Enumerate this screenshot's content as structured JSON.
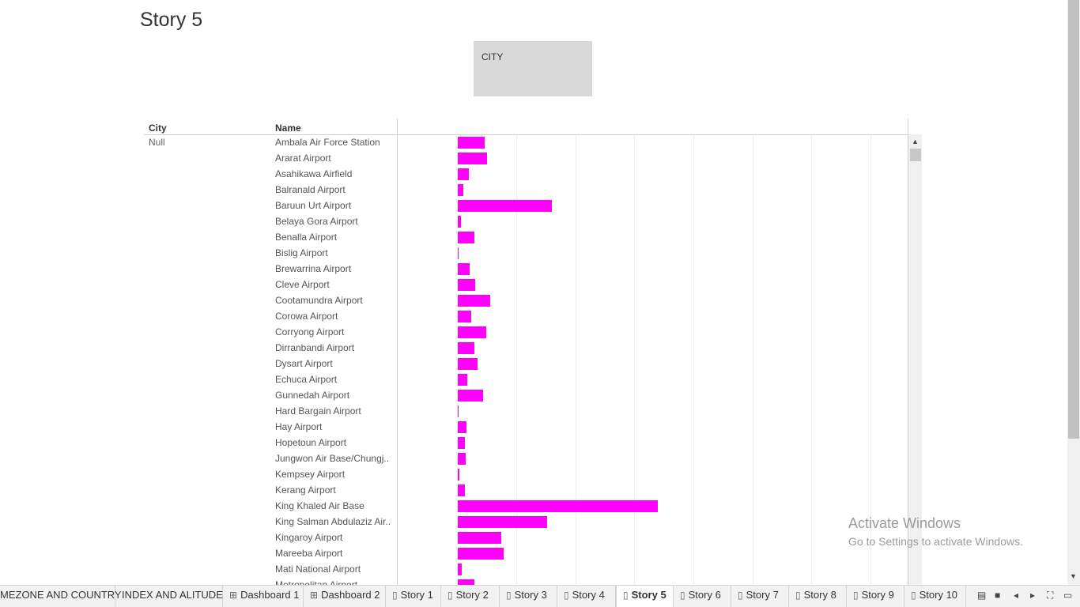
{
  "story_title": "Story 5",
  "filter": {
    "label": "CITY"
  },
  "table": {
    "city_header": "City",
    "name_header": "Name",
    "city_value": "Null",
    "rows": [
      {
        "name": "Ambala Air Force Station",
        "value": 34
      },
      {
        "name": "Ararat Airport",
        "value": 37
      },
      {
        "name": "Asahikawa Airfield",
        "value": 14
      },
      {
        "name": "Balranald Airport",
        "value": 7
      },
      {
        "name": "Baruun Urt Airport",
        "value": 119
      },
      {
        "name": "Belaya Gora Airport",
        "value": 4
      },
      {
        "name": "Benalla Airport",
        "value": 21
      },
      {
        "name": "Bislig Airport",
        "value": 1
      },
      {
        "name": "Brewarrina Airport",
        "value": 15
      },
      {
        "name": "Cleve Airport",
        "value": 22
      },
      {
        "name": "Cootamundra Airport",
        "value": 41
      },
      {
        "name": "Corowa Airport",
        "value": 17
      },
      {
        "name": "Corryong Airport",
        "value": 36
      },
      {
        "name": "Dirranbandi Airport",
        "value": 21
      },
      {
        "name": "Dysart Airport",
        "value": 25
      },
      {
        "name": "Echuca Airport",
        "value": 12
      },
      {
        "name": "Gunnedah Airport",
        "value": 32
      },
      {
        "name": "Hard Bargain Airport",
        "value": 1
      },
      {
        "name": "Hay Airport",
        "value": 11
      },
      {
        "name": "Hopetoun Airport",
        "value": 9
      },
      {
        "name": "Jungwon Air Base/Chungj..",
        "value": 10
      },
      {
        "name": "Kempsey Airport",
        "value": 2
      },
      {
        "name": "Kerang Airport",
        "value": 9
      },
      {
        "name": "King Khaled Air Base",
        "value": 253
      },
      {
        "name": "King Salman Abdulaziz Air..",
        "value": 113
      },
      {
        "name": "Kingaroy Airport",
        "value": 55
      },
      {
        "name": "Mareeba Airport",
        "value": 58
      },
      {
        "name": "Mati National Airport",
        "value": 5
      },
      {
        "name": "Metropolitan Airport",
        "value": 21
      }
    ]
  },
  "watermark": {
    "line1": "Activate Windows",
    "line2": "Go to Settings to activate Windows."
  },
  "tabs": [
    {
      "label": "MEZONE AND COUNTRY",
      "icon": ""
    },
    {
      "label": "INDEX AND ALITUDE",
      "icon": ""
    },
    {
      "label": "Dashboard 1",
      "icon": "⊞"
    },
    {
      "label": "Dashboard 2",
      "icon": "⊞"
    },
    {
      "label": "Story 1",
      "icon": "▯"
    },
    {
      "label": "Story 2",
      "icon": "▯"
    },
    {
      "label": "Story 3",
      "icon": "▯"
    },
    {
      "label": "Story 4",
      "icon": "▯"
    },
    {
      "label": "Story 5",
      "icon": "▯"
    },
    {
      "label": "Story 6",
      "icon": "▯"
    },
    {
      "label": "Story 7",
      "icon": "▯"
    },
    {
      "label": "Story 8",
      "icon": "▯"
    },
    {
      "label": "Story 9",
      "icon": "▯"
    },
    {
      "label": "Story 10",
      "icon": "▯"
    }
  ],
  "active_tab": "Story 5",
  "bar_color": "#ff00ff"
}
